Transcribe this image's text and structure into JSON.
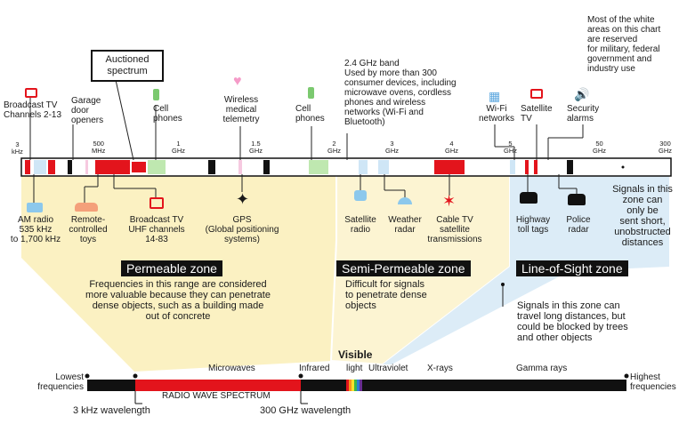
{
  "note_white_areas": "Most of the white\nareas on this chart\nare reserved\nfor military, federal\ngovernment and\nindustry use",
  "top_items": {
    "broadcast_tv_2_13": "Broadcast TV\nChannels 2-13",
    "garage_door": "Garage\ndoor\nopeners",
    "auctioned": "Auctioned\nspectrum",
    "cell_phones_1": "Cell\nphones",
    "wireless_medical": "Wireless\nmedical\ntelemetry",
    "cell_phones_2": "Cell\nphones",
    "ghz_band": "2.4 GHz band\nUsed by more than 300\nconsumer devices, including\nmicrowave ovens, cordless\nphones and wireless\nnetworks (Wi-Fi and\nBluetooth)",
    "wifi": "Wi-Fi\nnetworks",
    "satellite_tv": "Satellite\nTV",
    "security_alarms": "Security\nalarms"
  },
  "ticks": [
    {
      "label": "3\nkHz"
    },
    {
      "label": "500\nMHz"
    },
    {
      "label": "1\nGHz"
    },
    {
      "label": "1.5\nGHz"
    },
    {
      "label": "2\nGHz"
    },
    {
      "label": "3\nGHz"
    },
    {
      "label": "4\nGHz"
    },
    {
      "label": "5\nGHz"
    },
    {
      "label": "50\nGHz"
    },
    {
      "label": "300\nGHz"
    }
  ],
  "bottom_items": {
    "am_radio": "AM radio\n535 kHz\nto 1,700 kHz",
    "remote_toys": "Remote-\ncontrolled\ntoys",
    "broadcast_uhf": "Broadcast TV\nUHF channels\n14-83",
    "gps": "GPS\n(Global positioning\nsystems)",
    "satellite_radio": "Satellite\nradio",
    "weather_radar": "Weather\nradar",
    "cable_tv": "Cable TV\nsatellite\ntransmissions",
    "highway_tags": "Highway\ntoll tags",
    "police_radar": "Police\nradar"
  },
  "los_note": "Signals in this\nzone can\nonly be\nsent short,\nunobstructed\ndistances",
  "zones": {
    "permeable": {
      "label": "Permeable zone",
      "desc": "Frequencies in this range are considered\nmore valuable because they can penetrate\ndense objects, such as a building made\nout of concrete"
    },
    "semi": {
      "label": "Semi-Permeable zone",
      "desc": "Difficult for signals\nto penetrate dense\nobjects"
    },
    "los": {
      "label": "Line-of-Sight zone",
      "desc": "Signals in this zone can\ntravel long distances, but\ncould be blocked by trees\nand other objects"
    }
  },
  "spectrum": {
    "lowest": "Lowest\nfrequencies",
    "highest": "Highest\nfrequencies",
    "microwaves": "Microwaves",
    "infrared": "Infrared",
    "visible": "Visible",
    "light": "light",
    "ultraviolet": "Ultraviolet",
    "xrays": "X-rays",
    "gamma": "Gamma rays",
    "radio": "RADIO WAVE SPECTRUM",
    "wl_3khz": "3 kHz wavelength",
    "wl_300ghz": "300 GHz wavelength"
  },
  "colors": {
    "red": "#e3141c",
    "green": "#bfe8b0",
    "light_blue": "#cfe6f6",
    "pink": "#f6c9e0",
    "permeable_fill": "#fbf1c2",
    "semi_fill": "#fcf4d2",
    "los_fill": "#dcecf7"
  }
}
